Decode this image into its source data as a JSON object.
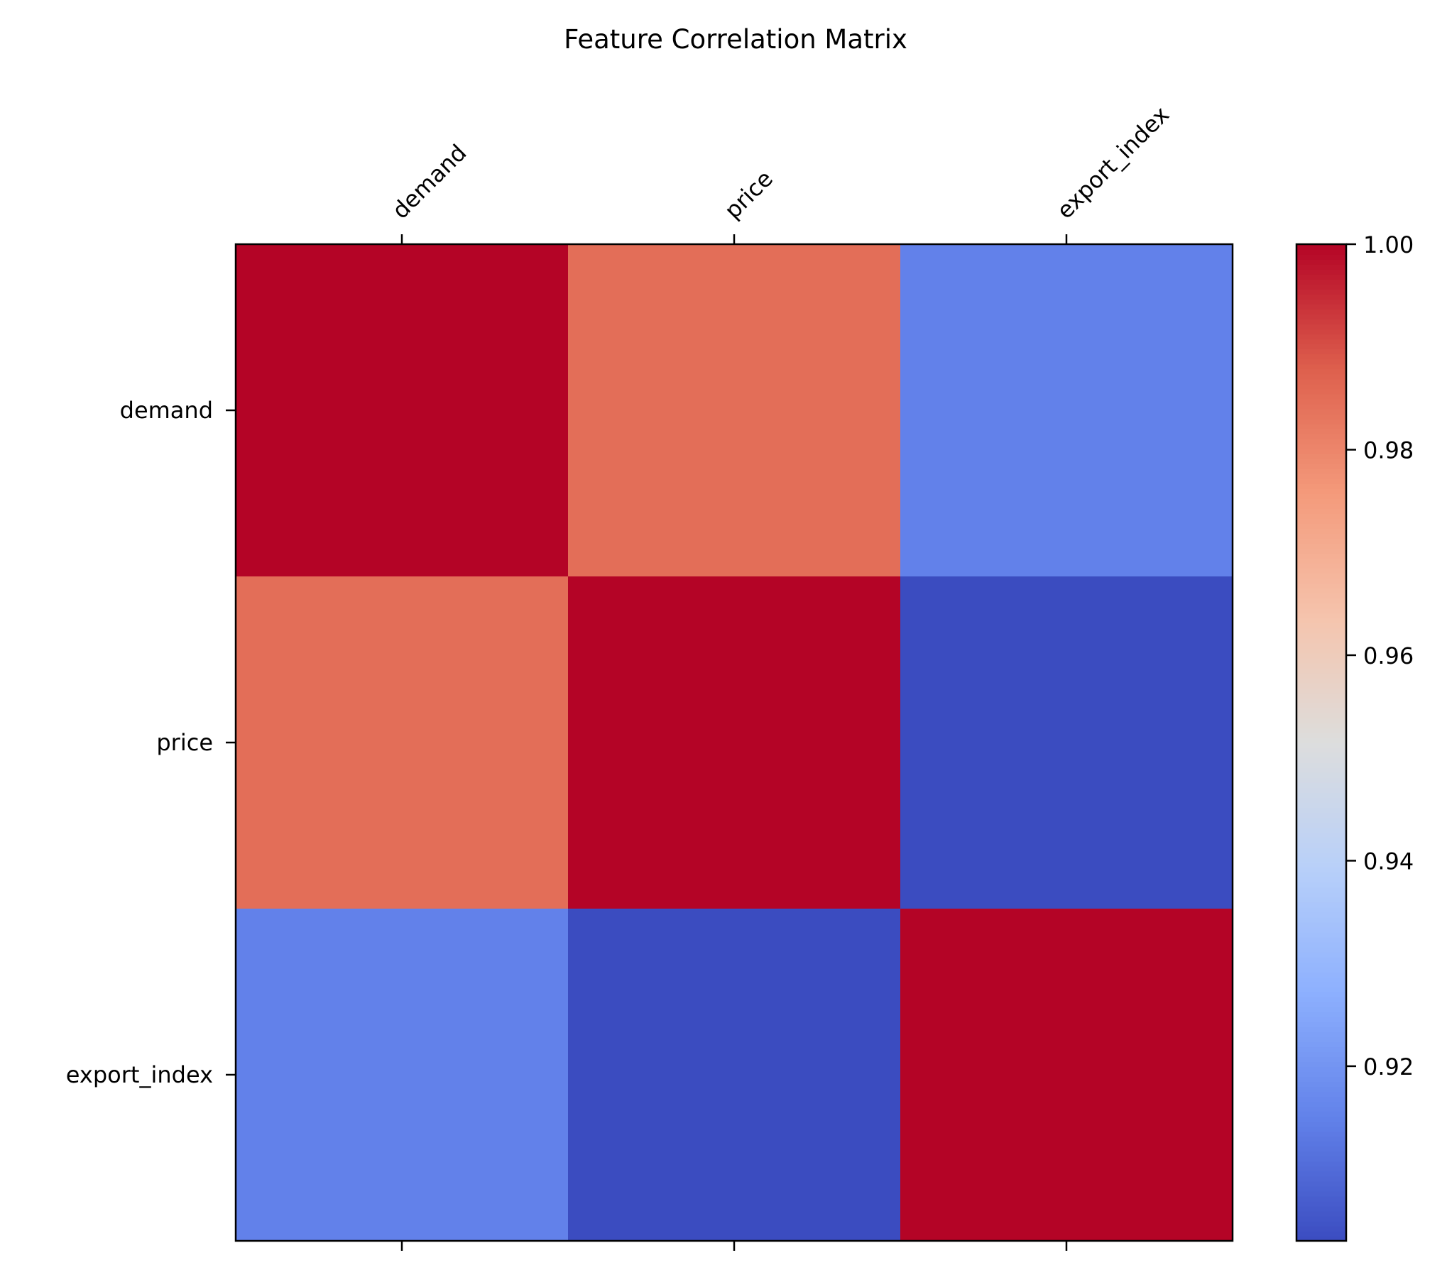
{
  "chart_data": {
    "type": "heatmap",
    "title": "Feature Correlation Matrix",
    "x_labels": [
      "demand",
      "price",
      "export_index"
    ],
    "y_labels": [
      "demand",
      "price",
      "export_index"
    ],
    "values": [
      [
        1.0,
        0.985,
        0.915
      ],
      [
        0.985,
        1.0,
        0.903
      ],
      [
        0.915,
        0.903,
        1.0
      ]
    ],
    "colormap": "coolwarm",
    "colorbar": {
      "vmin": 0.903,
      "vmax": 1.0,
      "ticks": [
        0.92,
        0.94,
        0.96,
        0.98,
        1.0
      ],
      "tick_labels": [
        "0.92",
        "0.94",
        "0.96",
        "0.98",
        "1.00"
      ]
    },
    "x_tick_position": "top",
    "grid": false
  }
}
